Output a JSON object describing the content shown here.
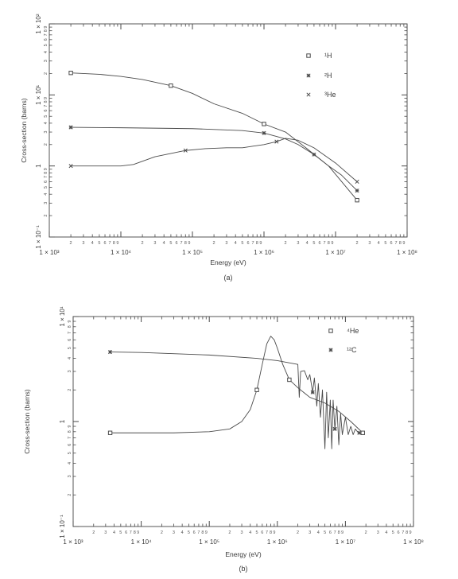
{
  "chart_data": [
    {
      "type": "line",
      "xlabel": "Energy (eV)",
      "ylabel": "Cross-section (barns)",
      "caption": "(a)",
      "x_scale": "log",
      "y_scale": "log",
      "xlim": [
        1000,
        100000000
      ],
      "ylim": [
        0.1,
        100
      ],
      "x_tick_labels": [
        "1 × 10³",
        "1 × 10⁴",
        "1 × 10⁵",
        "1 × 10⁶",
        "1 × 10⁷",
        "1 × 10⁸"
      ],
      "y_tick_labels": [
        "1 × 10⁻¹",
        "1",
        "1 × 10¹",
        "1 × 10²"
      ],
      "legend_position": "top-right",
      "grid": false,
      "series": [
        {
          "name": "¹H",
          "marker": "square",
          "x": [
            2000,
            5000,
            10000,
            20000,
            50000,
            100000,
            200000,
            500000,
            1000000,
            2000000,
            4000000,
            8000000,
            20000000
          ],
          "y": [
            20.4,
            19.5,
            18.2,
            16.5,
            13.5,
            10.5,
            7.5,
            5.5,
            3.9,
            3.0,
            1.75,
            1.0,
            0.33
          ]
        },
        {
          "name": "²H",
          "marker": "asterisk",
          "x": [
            2000,
            10000,
            100000,
            500000,
            1000000,
            1500000,
            2000000,
            3000000,
            5000000,
            8000000,
            12000000,
            20000000
          ],
          "y": [
            3.5,
            3.45,
            3.35,
            3.15,
            2.9,
            2.6,
            2.4,
            2.0,
            1.45,
            1.0,
            0.75,
            0.45
          ]
        },
        {
          "name": "³He",
          "marker": "x",
          "x": [
            2000,
            5000,
            10000,
            15000,
            30000,
            80000,
            150000,
            300000,
            500000,
            700000,
            1000000,
            1500000,
            2000000,
            3000000,
            5000000,
            10000000,
            20000000
          ],
          "y": [
            1.0,
            1.0,
            1.0,
            1.05,
            1.35,
            1.65,
            1.75,
            1.8,
            1.8,
            1.9,
            2.0,
            2.2,
            2.45,
            2.3,
            1.8,
            1.1,
            0.6
          ]
        }
      ]
    },
    {
      "type": "line",
      "xlabel": "Energy (eV)",
      "ylabel": "Cross-section (barns)",
      "caption": "(b)",
      "x_scale": "log",
      "y_scale": "log",
      "xlim": [
        1000,
        100000000
      ],
      "ylim": [
        0.1,
        10
      ],
      "x_tick_labels": [
        "1 × 10³",
        "1 × 10⁴",
        "1 × 10⁵",
        "1 × 10⁶",
        "1 × 10⁷",
        "1 × 10⁸"
      ],
      "y_tick_labels": [
        "1 × 10⁻¹",
        "1",
        "1 × 10¹"
      ],
      "legend_position": "top-right",
      "grid": false,
      "series": [
        {
          "name": "⁴He",
          "marker": "square",
          "x": [
            3500,
            10000,
            30000,
            100000,
            200000,
            300000,
            400000,
            500000,
            600000,
            700000,
            800000,
            900000,
            1000000,
            1200000,
            1500000,
            2000000,
            3000000,
            5000000,
            8000000,
            12000000,
            18000000
          ],
          "y": [
            0.78,
            0.78,
            0.78,
            0.8,
            0.85,
            1.0,
            1.3,
            2.0,
            3.5,
            5.5,
            6.5,
            6.0,
            5.0,
            3.5,
            2.5,
            2.1,
            1.7,
            1.5,
            1.25,
            1.0,
            0.78
          ]
        },
        {
          "name": "¹²C",
          "marker": "asterisk",
          "x": [
            3500,
            10000,
            100000,
            500000,
            1000000,
            2000000,
            2100000,
            2200000,
            2500000,
            2800000,
            3000000,
            3300000,
            3500000,
            3800000,
            4000000,
            4300000,
            4600000,
            5000000,
            5300000,
            5600000,
            6000000,
            6300000,
            6600000,
            7000000,
            7500000,
            8000000,
            8500000,
            9000000,
            10000000,
            11000000,
            12000000,
            13000000,
            14000000,
            15000000,
            16000000
          ],
          "y": [
            4.6,
            4.55,
            4.3,
            4.0,
            3.8,
            3.5,
            1.7,
            3.0,
            3.05,
            2.5,
            2.8,
            1.9,
            2.6,
            1.4,
            2.3,
            1.1,
            2.0,
            0.55,
            1.9,
            0.7,
            1.6,
            0.55,
            1.6,
            0.85,
            1.4,
            0.6,
            1.2,
            0.75,
            1.1,
            0.75,
            0.9,
            0.75,
            0.85,
            0.8,
            0.78
          ]
        }
      ]
    }
  ]
}
